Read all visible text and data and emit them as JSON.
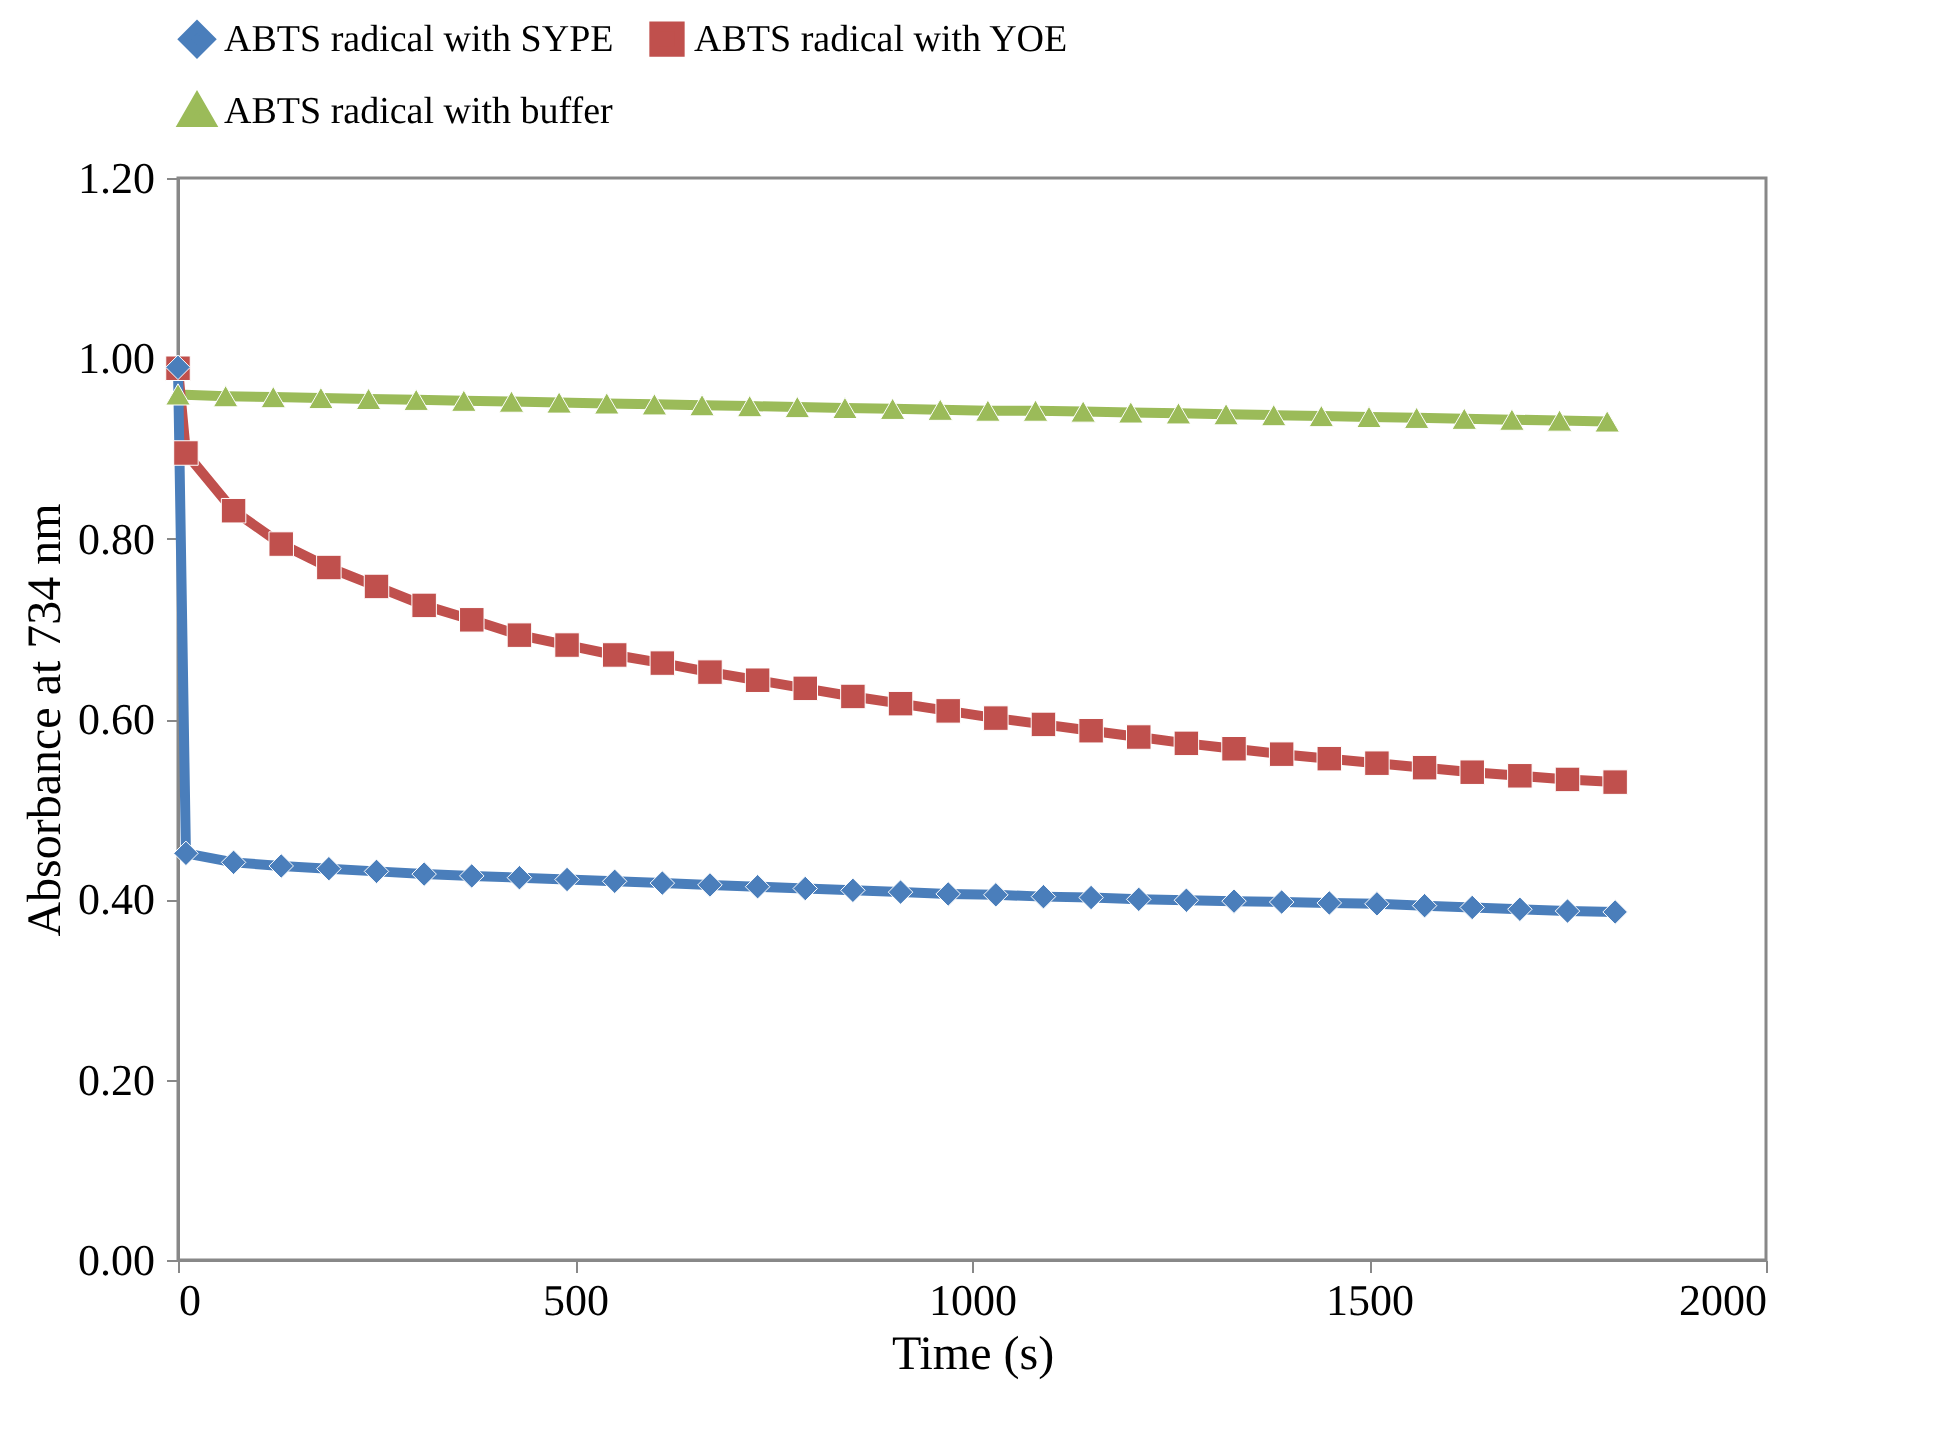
{
  "chart_data": {
    "type": "line",
    "xlabel": "Time (s)",
    "ylabel": "Absorbance at 734 nm",
    "xlim": [
      0,
      2000
    ],
    "xticks": [
      0,
      500,
      1000,
      1500,
      2000
    ],
    "ylim": [
      0,
      1.2
    ],
    "yticks": [
      {
        "value": 0,
        "label": "0.00"
      },
      {
        "value": 0.2,
        "label": "0.20"
      },
      {
        "value": 0.4,
        "label": "0.40"
      },
      {
        "value": 0.6,
        "label": "0.60"
      },
      {
        "value": 0.8,
        "label": "0.80"
      },
      {
        "value": 1.0,
        "label": "1.00"
      },
      {
        "value": 1.2,
        "label": "1.20"
      }
    ],
    "grid": false,
    "legend": "top",
    "line_style": "solid",
    "series": [
      {
        "name": "ABTS radical with SYPE",
        "color": "#4a7ebb",
        "marker": "diamond",
        "x": [
          0,
          10,
          70,
          130,
          190,
          250,
          310,
          370,
          430,
          490,
          550,
          610,
          670,
          730,
          790,
          850,
          910,
          970,
          1030,
          1090,
          1150,
          1210,
          1270,
          1330,
          1390,
          1450,
          1510,
          1570,
          1630,
          1690,
          1750,
          1810
        ],
        "values": [
          0.99,
          0.451,
          0.441,
          0.437,
          0.434,
          0.431,
          0.428,
          0.426,
          0.424,
          0.422,
          0.42,
          0.418,
          0.416,
          0.414,
          0.412,
          0.41,
          0.408,
          0.406,
          0.405,
          0.403,
          0.402,
          0.4,
          0.399,
          0.398,
          0.397,
          0.396,
          0.395,
          0.393,
          0.391,
          0.389,
          0.387,
          0.386
        ]
      },
      {
        "name": "ABTS radical with YOE",
        "color": "#c0504d",
        "marker": "square",
        "x": [
          0,
          10,
          70,
          130,
          190,
          250,
          310,
          370,
          430,
          490,
          550,
          610,
          670,
          730,
          790,
          850,
          910,
          970,
          1030,
          1090,
          1150,
          1210,
          1270,
          1330,
          1390,
          1450,
          1510,
          1570,
          1630,
          1690,
          1750,
          1810
        ],
        "values": [
          0.989,
          0.895,
          0.831,
          0.794,
          0.768,
          0.747,
          0.726,
          0.71,
          0.693,
          0.682,
          0.671,
          0.662,
          0.652,
          0.643,
          0.634,
          0.625,
          0.617,
          0.609,
          0.601,
          0.594,
          0.587,
          0.58,
          0.573,
          0.567,
          0.561,
          0.556,
          0.551,
          0.546,
          0.541,
          0.537,
          0.533,
          0.53
        ]
      },
      {
        "name": "ABTS radical with buffer",
        "color": "#9bbb59",
        "marker": "triangle",
        "x": [
          0,
          60,
          120,
          180,
          240,
          300,
          360,
          420,
          480,
          540,
          600,
          660,
          720,
          780,
          840,
          900,
          960,
          1020,
          1080,
          1140,
          1200,
          1260,
          1320,
          1380,
          1440,
          1500,
          1560,
          1620,
          1680,
          1740,
          1800
        ],
        "values": [
          0.96,
          0.958,
          0.957,
          0.956,
          0.955,
          0.954,
          0.953,
          0.952,
          0.951,
          0.95,
          0.949,
          0.948,
          0.947,
          0.946,
          0.945,
          0.944,
          0.943,
          0.942,
          0.942,
          0.941,
          0.94,
          0.939,
          0.938,
          0.937,
          0.936,
          0.935,
          0.934,
          0.933,
          0.932,
          0.931,
          0.93
        ]
      }
    ]
  }
}
